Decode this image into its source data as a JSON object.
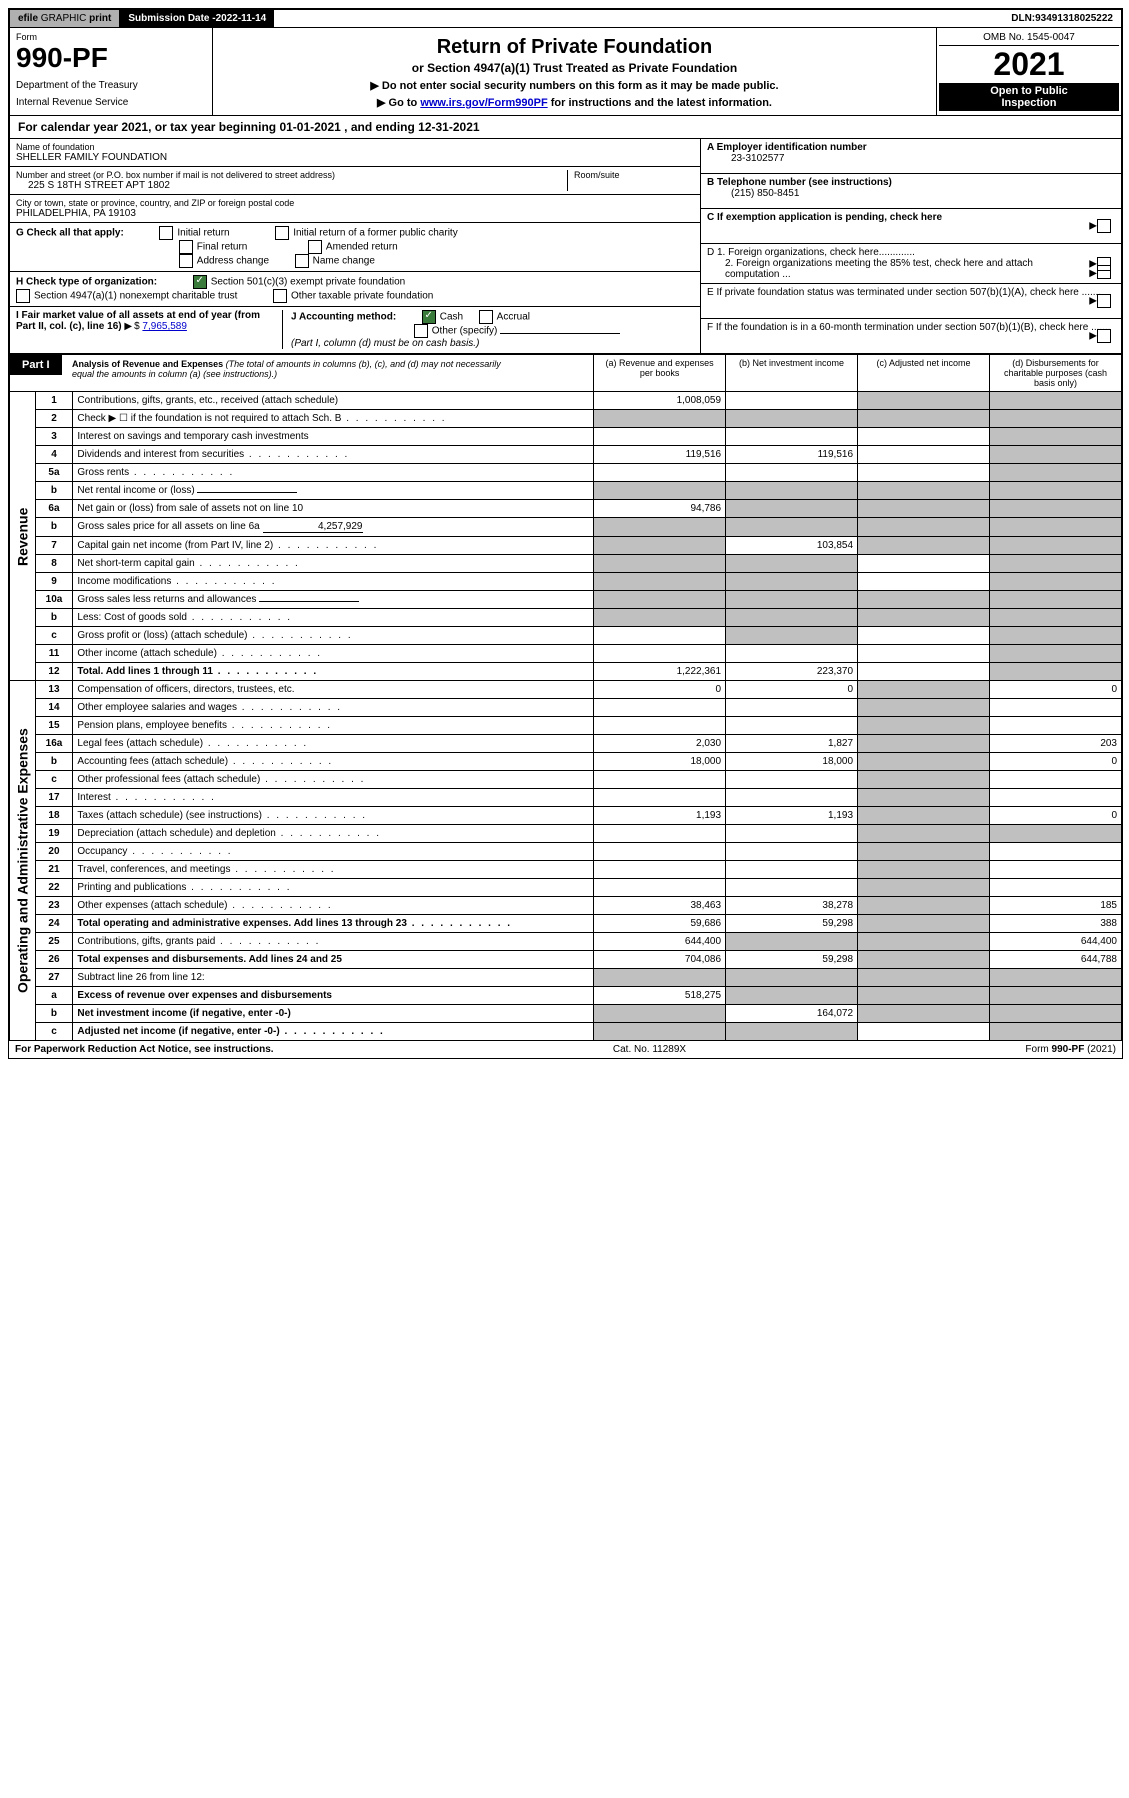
{
  "top": {
    "efile": "efile",
    "graphic": "GRAPHIC",
    "print": "print",
    "submission_label": "Submission Date - ",
    "submission_date": "2022-11-14",
    "dln_label": "DLN: ",
    "dln": "93491318025222"
  },
  "header": {
    "form_label": "Form",
    "form_number": "990-PF",
    "dept": "Department of the Treasury",
    "irs": "Internal Revenue Service",
    "title": "Return of Private Foundation",
    "subtitle": "or Section 4947(a)(1) Trust Treated as Private Foundation",
    "instr1": "▶ Do not enter social security numbers on this form as it may be made public.",
    "instr2_pre": "▶ Go to ",
    "instr2_link": "www.irs.gov/Form990PF",
    "instr2_post": " for instructions and the latest information.",
    "omb": "OMB No. 1545-0047",
    "year": "2021",
    "open1": "Open to Public",
    "open2": "Inspection"
  },
  "calyear": "For calendar year 2021, or tax year beginning 01-01-2021                          , and ending 12-31-2021",
  "info": {
    "name_label": "Name of foundation",
    "name": "SHELLER FAMILY FOUNDATION",
    "addr_label": "Number and street (or P.O. box number if mail is not delivered to street address)",
    "addr": "225 S 18TH STREET APT 1802",
    "room_label": "Room/suite",
    "city_label": "City or town, state or province, country, and ZIP or foreign postal code",
    "city": "PHILADELPHIA, PA  19103",
    "ein_label": "A Employer identification number",
    "ein": "23-3102577",
    "phone_label": "B Telephone number (see instructions)",
    "phone": "(215) 850-8451",
    "c_label": "C If exemption application is pending, check here",
    "d1": "D 1. Foreign organizations, check here.............",
    "d2": "2. Foreign organizations meeting the 85% test, check here and attach computation ...",
    "e_label": "E  If private foundation status was terminated under section 507(b)(1)(A), check here .......",
    "f_label": "F  If the foundation is in a 60-month termination under section 507(b)(1)(B), check here .......",
    "g_label": "G Check all that apply:",
    "g_initial": "Initial return",
    "g_initial_former": "Initial return of a former public charity",
    "g_final": "Final return",
    "g_amended": "Amended return",
    "g_addr_change": "Address change",
    "g_name_change": "Name change",
    "h_label": "H Check type of organization:",
    "h_501c3": "Section 501(c)(3) exempt private foundation",
    "h_4947": "Section 4947(a)(1) nonexempt charitable trust",
    "h_other_tax": "Other taxable private foundation",
    "i_label": "I Fair market value of all assets at end of year (from Part II, col. (c), line 16)",
    "i_value": "7,965,589",
    "j_label": "J Accounting method:",
    "j_cash": "Cash",
    "j_accrual": "Accrual",
    "j_other": "Other (specify)",
    "j_note": "(Part I, column (d) must be on cash basis.)"
  },
  "part1": {
    "header": "Part I",
    "title": "Analysis of Revenue and Expenses",
    "note": "(The total of amounts in columns (b), (c), and (d) may not necessarily equal the amounts in column (a) (see instructions).)",
    "col_a": "(a)   Revenue and expenses per books",
    "col_b": "(b)   Net investment income",
    "col_c": "(c)   Adjusted net income",
    "col_d": "(d)   Disbursements for charitable purposes (cash basis only)",
    "side_revenue": "Revenue",
    "side_expenses": "Operating and Administrative Expenses"
  },
  "lines": [
    {
      "n": "1",
      "desc": "Contributions, gifts, grants, etc., received (attach schedule)",
      "a": "1,008,059",
      "b": "",
      "c": "shaded",
      "d": "shaded"
    },
    {
      "n": "2",
      "desc": "Check ▶ ☐ if the foundation is not required to attach Sch. B",
      "dots": true,
      "a": "shaded",
      "b": "shaded",
      "c": "shaded",
      "d": "shaded"
    },
    {
      "n": "3",
      "desc": "Interest on savings and temporary cash investments",
      "a": "",
      "b": "",
      "c": "",
      "d": "shaded"
    },
    {
      "n": "4",
      "desc": "Dividends and interest from securities",
      "dots": true,
      "a": "119,516",
      "b": "119,516",
      "c": "",
      "d": "shaded"
    },
    {
      "n": "5a",
      "desc": "Gross rents",
      "dots": true,
      "a": "",
      "b": "",
      "c": "",
      "d": "shaded"
    },
    {
      "n": "b",
      "desc": "Net rental income or (loss)",
      "inline": "",
      "a": "shaded",
      "b": "shaded",
      "c": "shaded",
      "d": "shaded"
    },
    {
      "n": "6a",
      "desc": "Net gain or (loss) from sale of assets not on line 10",
      "a": "94,786",
      "b": "shaded",
      "c": "shaded",
      "d": "shaded"
    },
    {
      "n": "b",
      "desc": "Gross sales price for all assets on line 6a",
      "inline": "4,257,929",
      "a": "shaded",
      "b": "shaded",
      "c": "shaded",
      "d": "shaded"
    },
    {
      "n": "7",
      "desc": "Capital gain net income (from Part IV, line 2)",
      "dots": true,
      "a": "shaded",
      "b": "103,854",
      "c": "shaded",
      "d": "shaded"
    },
    {
      "n": "8",
      "desc": "Net short-term capital gain",
      "dots": true,
      "a": "shaded",
      "b": "shaded",
      "c": "",
      "d": "shaded"
    },
    {
      "n": "9",
      "desc": "Income modifications",
      "dots": true,
      "a": "shaded",
      "b": "shaded",
      "c": "",
      "d": "shaded"
    },
    {
      "n": "10a",
      "desc": "Gross sales less returns and allowances",
      "inline": "",
      "a": "shaded",
      "b": "shaded",
      "c": "shaded",
      "d": "shaded"
    },
    {
      "n": "b",
      "desc": "Less: Cost of goods sold",
      "dots": true,
      "inline": "",
      "a": "shaded",
      "b": "shaded",
      "c": "shaded",
      "d": "shaded"
    },
    {
      "n": "c",
      "desc": "Gross profit or (loss) (attach schedule)",
      "dots": true,
      "a": "",
      "b": "shaded",
      "c": "",
      "d": "shaded"
    },
    {
      "n": "11",
      "desc": "Other income (attach schedule)",
      "dots": true,
      "a": "",
      "b": "",
      "c": "",
      "d": "shaded"
    },
    {
      "n": "12",
      "desc": "Total. Add lines 1 through 11",
      "dots": true,
      "bold": true,
      "a": "1,222,361",
      "b": "223,370",
      "c": "",
      "d": "shaded"
    },
    {
      "n": "13",
      "desc": "Compensation of officers, directors, trustees, etc.",
      "a": "0",
      "b": "0",
      "c": "shaded",
      "d": "0"
    },
    {
      "n": "14",
      "desc": "Other employee salaries and wages",
      "dots": true,
      "a": "",
      "b": "",
      "c": "shaded",
      "d": ""
    },
    {
      "n": "15",
      "desc": "Pension plans, employee benefits",
      "dots": true,
      "a": "",
      "b": "",
      "c": "shaded",
      "d": ""
    },
    {
      "n": "16a",
      "desc": "Legal fees (attach schedule)",
      "dots": true,
      "a": "2,030",
      "b": "1,827",
      "c": "shaded",
      "d": "203"
    },
    {
      "n": "b",
      "desc": "Accounting fees (attach schedule)",
      "dots": true,
      "a": "18,000",
      "b": "18,000",
      "c": "shaded",
      "d": "0"
    },
    {
      "n": "c",
      "desc": "Other professional fees (attach schedule)",
      "dots": true,
      "a": "",
      "b": "",
      "c": "shaded",
      "d": ""
    },
    {
      "n": "17",
      "desc": "Interest",
      "dots": true,
      "a": "",
      "b": "",
      "c": "shaded",
      "d": ""
    },
    {
      "n": "18",
      "desc": "Taxes (attach schedule) (see instructions)",
      "dots": true,
      "a": "1,193",
      "b": "1,193",
      "c": "shaded",
      "d": "0"
    },
    {
      "n": "19",
      "desc": "Depreciation (attach schedule) and depletion",
      "dots": true,
      "a": "",
      "b": "",
      "c": "shaded",
      "d": "shaded"
    },
    {
      "n": "20",
      "desc": "Occupancy",
      "dots": true,
      "a": "",
      "b": "",
      "c": "shaded",
      "d": ""
    },
    {
      "n": "21",
      "desc": "Travel, conferences, and meetings",
      "dots": true,
      "a": "",
      "b": "",
      "c": "shaded",
      "d": ""
    },
    {
      "n": "22",
      "desc": "Printing and publications",
      "dots": true,
      "a": "",
      "b": "",
      "c": "shaded",
      "d": ""
    },
    {
      "n": "23",
      "desc": "Other expenses (attach schedule)",
      "dots": true,
      "a": "38,463",
      "b": "38,278",
      "c": "shaded",
      "d": "185"
    },
    {
      "n": "24",
      "desc": "Total operating and administrative expenses. Add lines 13 through 23",
      "dots": true,
      "bold": true,
      "a": "59,686",
      "b": "59,298",
      "c": "shaded",
      "d": "388"
    },
    {
      "n": "25",
      "desc": "Contributions, gifts, grants paid",
      "dots": true,
      "a": "644,400",
      "b": "shaded",
      "c": "shaded",
      "d": "644,400"
    },
    {
      "n": "26",
      "desc": "Total expenses and disbursements. Add lines 24 and 25",
      "bold": true,
      "a": "704,086",
      "b": "59,298",
      "c": "shaded",
      "d": "644,788"
    },
    {
      "n": "27",
      "desc": "Subtract line 26 from line 12:",
      "a": "shaded",
      "b": "shaded",
      "c": "shaded",
      "d": "shaded"
    },
    {
      "n": "a",
      "desc": "Excess of revenue over expenses and disbursements",
      "bold": true,
      "a": "518,275",
      "b": "shaded",
      "c": "shaded",
      "d": "shaded"
    },
    {
      "n": "b",
      "desc": "Net investment income (if negative, enter -0-)",
      "bold": true,
      "a": "shaded",
      "b": "164,072",
      "c": "shaded",
      "d": "shaded"
    },
    {
      "n": "c",
      "desc": "Adjusted net income (if negative, enter -0-)",
      "dots": true,
      "bold": true,
      "a": "shaded",
      "b": "shaded",
      "c": "",
      "d": "shaded"
    }
  ],
  "footer": {
    "left": "For Paperwork Reduction Act Notice, see instructions.",
    "mid": "Cat. No. 11289X",
    "right": "Form 990-PF (2021)"
  },
  "colors": {
    "shaded": "#c0c0c0",
    "black": "#000000",
    "link": "#0000cc",
    "check_green": "#3a7a3a"
  }
}
